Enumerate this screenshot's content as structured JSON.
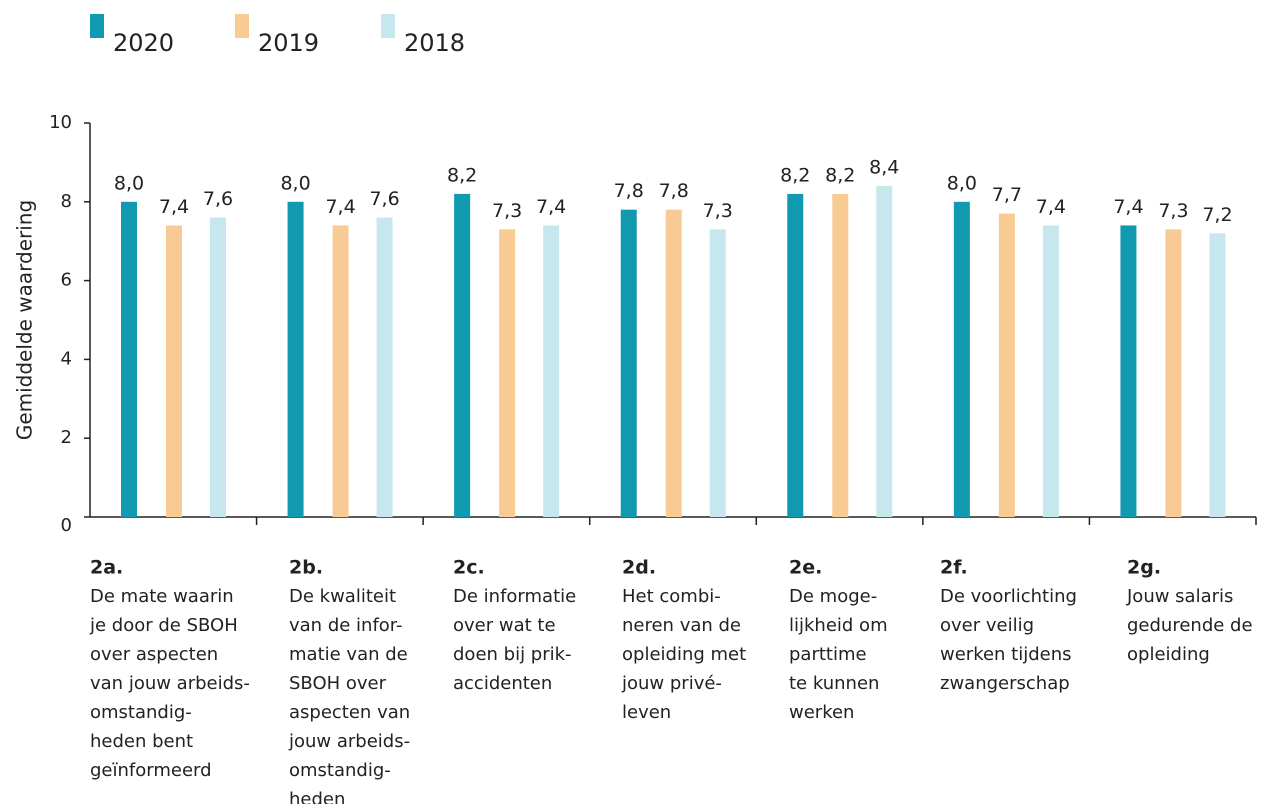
{
  "chart_data": {
    "type": "bar",
    "y_label": "Gemiddelde waardering",
    "categories": [
      "2a.",
      "2b.",
      "2c.",
      "2d.",
      "2e.",
      "2f.",
      "2g."
    ],
    "category_descriptions": [
      [
        "De mate waarin",
        "je door de SBOH",
        "over aspecten",
        "van jouw arbeids-",
        "omstandig-",
        "heden bent",
        "geïnformeerd"
      ],
      [
        "De kwaliteit",
        "van de infor-",
        "matie van de",
        "SBOH over",
        "aspecten van",
        "jouw arbeids-",
        "omstandig-",
        "heden"
      ],
      [
        "De informatie",
        "over wat te",
        "doen bij prik-",
        "accidenten"
      ],
      [
        "Het combi-",
        "neren van de",
        "opleiding met",
        "jouw privé-",
        "leven"
      ],
      [
        "De moge-",
        "lijkheid om",
        "parttime",
        "te kunnen",
        "werken"
      ],
      [
        "De voorlichting",
        "over veilig",
        "werken tijdens",
        "zwangerschap"
      ],
      [
        "Jouw salaris",
        "gedurende de",
        "opleiding"
      ]
    ],
    "series": [
      {
        "name": "2020",
        "color": "#1199b0",
        "values": [
          8.0,
          8.0,
          8.2,
          7.8,
          8.2,
          8.0,
          7.4
        ],
        "value_labels": [
          "8,0",
          "8,0",
          "8,2",
          "7,8",
          "8,2",
          "8,0",
          "7,4"
        ]
      },
      {
        "name": "2019",
        "color": "#f9cb94",
        "values": [
          7.4,
          7.4,
          7.3,
          7.8,
          8.2,
          7.7,
          7.3
        ],
        "value_labels": [
          "7,4",
          "7,4",
          "7,3",
          "7,8",
          "8,2",
          "7,7",
          "7,3"
        ]
      },
      {
        "name": "2018",
        "color": "#c7e7ee",
        "values": [
          7.6,
          7.6,
          7.4,
          7.3,
          8.4,
          7.4,
          7.2
        ],
        "value_labels": [
          "7,6",
          "7,6",
          "7,4",
          "7,3",
          "8,4",
          "7,4",
          "7,2"
        ]
      }
    ],
    "ylim": [
      0,
      10
    ],
    "yticks": [
      0,
      2,
      4,
      6,
      8,
      10
    ]
  }
}
